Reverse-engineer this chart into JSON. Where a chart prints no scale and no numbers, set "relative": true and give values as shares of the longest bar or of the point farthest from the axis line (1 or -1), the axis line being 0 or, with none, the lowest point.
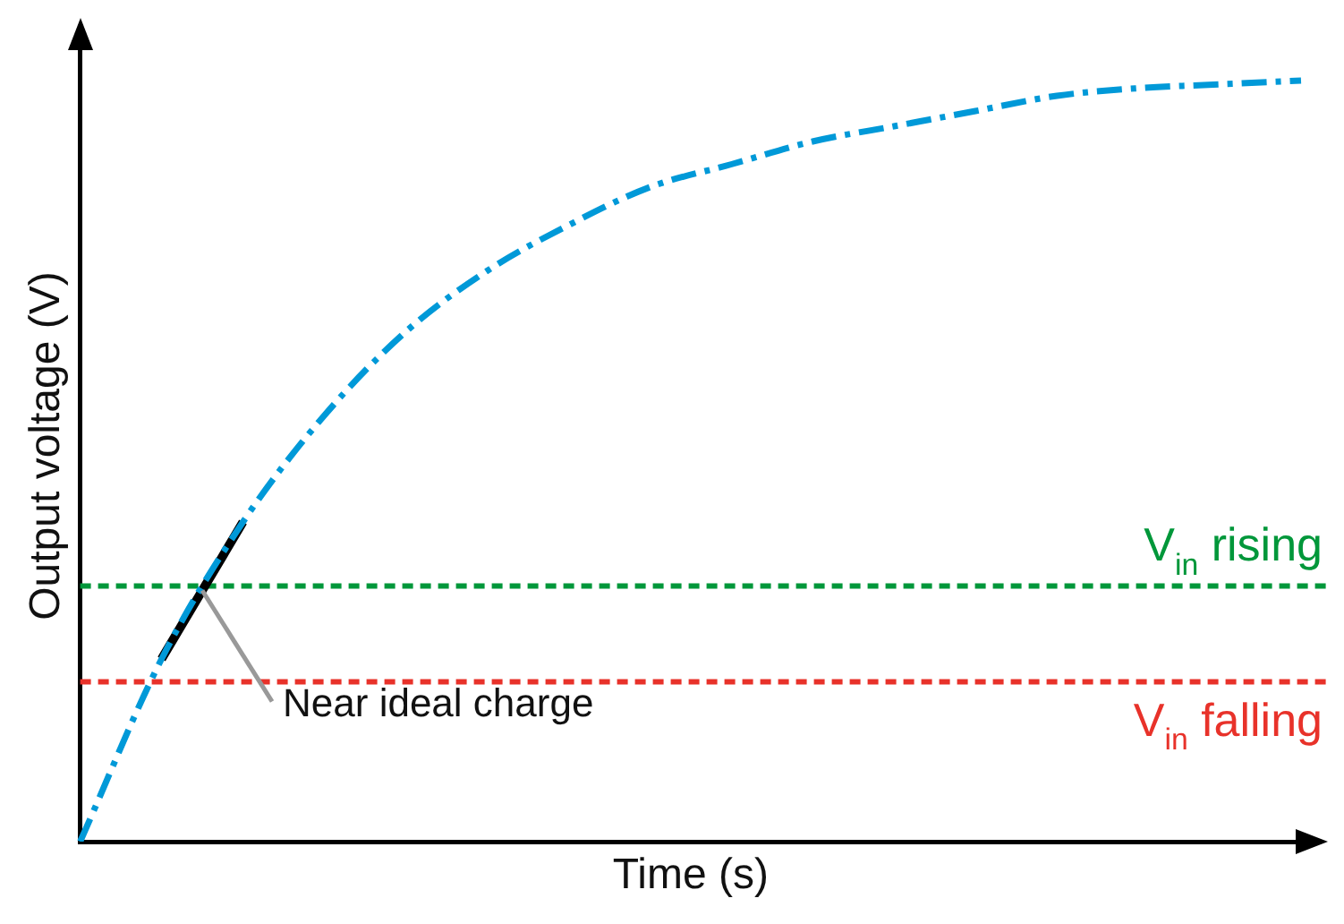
{
  "chart_data": {
    "type": "line",
    "relative": true,
    "xlabel": "Time (s)",
    "ylabel": "Output voltage (V)",
    "categories": [
      null,
      null,
      null,
      null,
      null,
      null,
      null,
      null,
      null,
      null,
      null,
      null,
      null,
      null,
      null,
      null
    ],
    "series": [
      {
        "color": "#0099d8",
        "line_style": "dashed",
        "values": [
          0,
          0.24,
          0.42,
          0.56,
          0.67,
          0.75,
          0.81,
          0.86,
          0.89,
          0.92,
          0.94,
          0.96,
          0.98,
          0.99,
          0.995,
          1
        ]
      },
      {
        "color": "#000000",
        "line_style": "solid",
        "values": [
          null,
          0.24,
          0.42,
          null,
          null,
          null,
          null,
          null,
          null,
          null,
          null,
          null,
          null,
          null,
          null,
          null
        ]
      }
    ],
    "ref_lines": [
      {
        "axis": "y",
        "value": 0.336,
        "label": "V$_{in}$ rising",
        "color": "#00973a",
        "line_style": "dashed"
      },
      {
        "axis": "y",
        "value": 0.21,
        "label": "V$_{in}$ falling",
        "color": "#e8322a",
        "line_style": "dashed"
      }
    ],
    "annotations": [
      "Near ideal charge"
    ],
    "grid": false,
    "legend": false,
    "marker": "none"
  }
}
